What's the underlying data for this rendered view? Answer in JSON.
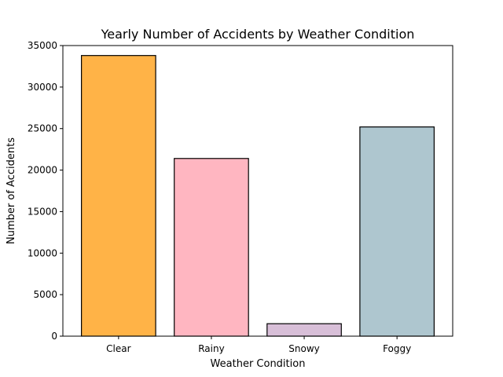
{
  "chart_data": {
    "type": "bar",
    "title": "Yearly Number of Accidents by Weather Condition",
    "xlabel": "Weather Condition",
    "ylabel": "Number of Accidents",
    "categories": [
      "Clear",
      "Rainy",
      "Snowy",
      "Foggy"
    ],
    "values": [
      33800,
      21400,
      1500,
      25200
    ],
    "colors": [
      "#ffb347",
      "#ffb6c1",
      "#d8bfd8",
      "#aec6cf"
    ],
    "edge_color": "#000000",
    "ylim": [
      0,
      35000
    ],
    "yticks": [
      0,
      5000,
      10000,
      15000,
      20000,
      25000,
      30000,
      35000
    ],
    "grid": false,
    "legend": false
  }
}
